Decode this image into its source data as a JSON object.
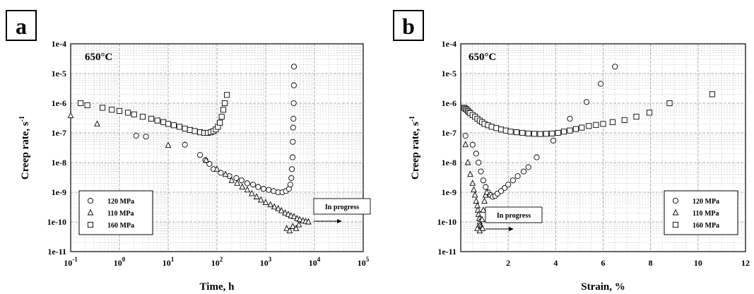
{
  "panels": [
    {
      "label": "a"
    },
    {
      "label": "b"
    }
  ],
  "chart_data": [
    {
      "type": "scatter",
      "panel": "a",
      "annotation_temp": "650°C",
      "annotation_progress": "In progress",
      "xlabel": "Time, h",
      "ylabel": "Creep rate, s",
      "ylabel_sup": "-1",
      "xscale": "log",
      "yscale": "log",
      "xlim": [
        0.1,
        100000
      ],
      "ylim": [
        1e-11,
        0.0001
      ],
      "x_ticks": [
        {
          "base": "10",
          "exp": "-1",
          "value": 0.1
        },
        {
          "base": "10",
          "exp": "0",
          "value": 1
        },
        {
          "base": "10",
          "exp": "1",
          "value": 10
        },
        {
          "base": "10",
          "exp": "2",
          "value": 100
        },
        {
          "base": "10",
          "exp": "3",
          "value": 1000
        },
        {
          "base": "10",
          "exp": "4",
          "value": 10000
        },
        {
          "base": "10",
          "exp": "5",
          "value": 100000
        }
      ],
      "y_ticks": [
        "1e-11",
        "1e-10",
        "1e-9",
        "1e-8",
        "1e-7",
        "1e-6",
        "1e-5",
        "1e-4"
      ],
      "grid": true,
      "legend_position": "bottom-left",
      "series": [
        {
          "name": "120 MPa",
          "marker": "circle",
          "points": [
            [
              2.2,
              8e-08
            ],
            [
              3.5,
              7.5e-08
            ],
            [
              22,
              4e-08
            ],
            [
              45,
              1.8e-08
            ],
            [
              58,
              1.2e-08
            ],
            [
              70,
              9e-09
            ],
            [
              85,
              6e-09
            ],
            [
              120,
              4.5e-09
            ],
            [
              180,
              3.5e-09
            ],
            [
              250,
              3e-09
            ],
            [
              320,
              2.5e-09
            ],
            [
              420,
              2e-09
            ],
            [
              550,
              1.8e-09
            ],
            [
              700,
              1.5e-09
            ],
            [
              900,
              1.3e-09
            ],
            [
              1150,
              1.2e-09
            ],
            [
              1450,
              1.1e-09
            ],
            [
              1800,
              1e-09
            ],
            [
              2200,
              1e-09
            ],
            [
              2600,
              1.1e-09
            ],
            [
              3000,
              1.3e-09
            ],
            [
              3200,
              1.8e-09
            ],
            [
              3350,
              3e-09
            ],
            [
              3450,
              6e-09
            ],
            [
              3550,
              1.5e-08
            ],
            [
              3600,
              5e-08
            ],
            [
              3650,
              1.5e-07
            ],
            [
              3700,
              3e-07
            ],
            [
              3750,
              1e-06
            ],
            [
              3780,
              4e-06
            ],
            [
              3800,
              1.7e-05
            ]
          ]
        },
        {
          "name": "110 MPa",
          "marker": "triangle",
          "points": [
            [
              0.1,
              3.8e-07
            ],
            [
              0.35,
              2e-07
            ],
            [
              10,
              3.8e-08
            ],
            [
              60,
              1.2e-08
            ],
            [
              100,
              6e-09
            ],
            [
              150,
              4e-09
            ],
            [
              200,
              2.5e-09
            ],
            [
              260,
              2e-09
            ],
            [
              330,
              1.5e-09
            ],
            [
              420,
              1.2e-09
            ],
            [
              520,
              9e-10
            ],
            [
              650,
              7e-10
            ],
            [
              800,
              5.5e-10
            ],
            [
              1000,
              4.5e-10
            ],
            [
              1250,
              3.8e-10
            ],
            [
              1500,
              3.2e-10
            ],
            [
              1800,
              2.8e-10
            ],
            [
              2100,
              2.4e-10
            ],
            [
              2500,
              2e-10
            ],
            [
              2900,
              1.8e-10
            ],
            [
              3300,
              1.6e-10
            ],
            [
              3800,
              1.5e-10
            ],
            [
              4400,
              1.3e-10
            ],
            [
              5000,
              1.2e-10
            ],
            [
              5800,
              1.1e-10
            ],
            [
              6600,
              1.05e-10
            ],
            [
              7500,
              1e-10
            ],
            [
              2700,
              6e-11
            ],
            [
              3100,
              5e-11
            ],
            [
              3600,
              7e-11
            ],
            [
              4200,
              6e-11
            ],
            [
              4800,
              8e-11
            ]
          ]
        },
        {
          "name": "160 MPa",
          "marker": "square",
          "points": [
            [
              0.16,
              1e-06
            ],
            [
              0.22,
              8.5e-07
            ],
            [
              0.45,
              7e-07
            ],
            [
              0.7,
              6e-07
            ],
            [
              1,
              5.5e-07
            ],
            [
              1.5,
              4.8e-07
            ],
            [
              2,
              4.2e-07
            ],
            [
              3,
              3.5e-07
            ],
            [
              4.5,
              3e-07
            ],
            [
              6,
              2.6e-07
            ],
            [
              8,
              2.3e-07
            ],
            [
              10,
              2e-07
            ],
            [
              13,
              1.8e-07
            ],
            [
              17,
              1.6e-07
            ],
            [
              22,
              1.4e-07
            ],
            [
              28,
              1.25e-07
            ],
            [
              35,
              1.15e-07
            ],
            [
              45,
              1.05e-07
            ],
            [
              55,
              1e-07
            ],
            [
              65,
              1e-07
            ],
            [
              75,
              1.05e-07
            ],
            [
              85,
              1.15e-07
            ],
            [
              95,
              1.3e-07
            ],
            [
              105,
              1.6e-07
            ],
            [
              115,
              2.2e-07
            ],
            [
              125,
              3.5e-07
            ],
            [
              135,
              6e-07
            ],
            [
              145,
              1e-06
            ],
            [
              160,
              1.9e-06
            ]
          ]
        }
      ]
    },
    {
      "type": "scatter",
      "panel": "b",
      "annotation_temp": "650°C",
      "annotation_progress": "In progress",
      "xlabel": "Strain, %",
      "ylabel": "Creep rate, s",
      "ylabel_sup": "-1",
      "xscale": "linear",
      "yscale": "log",
      "xlim": [
        0,
        12
      ],
      "ylim": [
        1e-11,
        0.0001
      ],
      "x_ticks": [
        "2",
        "4",
        "6",
        "8",
        "10",
        "12"
      ],
      "y_ticks": [
        "1e-11",
        "1e-10",
        "1e-9",
        "1e-8",
        "1e-7",
        "1e-6",
        "1e-5",
        "1e-4"
      ],
      "grid": true,
      "legend_position": "bottom-right",
      "series": [
        {
          "name": "120 MPa",
          "marker": "circle",
          "points": [
            [
              0.2,
              8e-08
            ],
            [
              0.5,
              4e-08
            ],
            [
              0.65,
              2e-08
            ],
            [
              0.75,
              1e-08
            ],
            [
              0.85,
              5e-09
            ],
            [
              0.95,
              2.5e-09
            ],
            [
              1.05,
              1.5e-09
            ],
            [
              1.15,
              1e-09
            ],
            [
              1.25,
              8e-10
            ],
            [
              1.35,
              7e-10
            ],
            [
              1.45,
              7.5e-10
            ],
            [
              1.55,
              9e-10
            ],
            [
              1.7,
              1.1e-09
            ],
            [
              1.85,
              1.4e-09
            ],
            [
              2,
              1.8e-09
            ],
            [
              2.2,
              2.5e-09
            ],
            [
              2.4,
              3.5e-09
            ],
            [
              2.65,
              5e-09
            ],
            [
              2.85,
              7e-09
            ],
            [
              3.2,
              1.5e-08
            ],
            [
              3.9,
              5.5e-08
            ],
            [
              4.6,
              3e-07
            ],
            [
              5.3,
              1.1e-06
            ],
            [
              5.9,
              4.5e-06
            ],
            [
              6.5,
              1.7e-05
            ]
          ]
        },
        {
          "name": "110 MPa",
          "marker": "triangle",
          "points": [
            [
              0.2,
              4e-08
            ],
            [
              0.3,
              1e-08
            ],
            [
              0.4,
              4e-09
            ],
            [
              0.5,
              2e-09
            ],
            [
              0.55,
              1.2e-09
            ],
            [
              0.6,
              8e-10
            ],
            [
              0.65,
              5e-10
            ],
            [
              0.7,
              3.5e-10
            ],
            [
              0.72,
              2.5e-10
            ],
            [
              0.75,
              1.8e-10
            ],
            [
              0.78,
              1.3e-10
            ],
            [
              0.8,
              1e-10
            ],
            [
              0.82,
              8e-11
            ],
            [
              0.85,
              7e-11
            ],
            [
              0.88,
              6e-11
            ],
            [
              0.9,
              1.2e-10
            ],
            [
              0.95,
              2.5e-10
            ],
            [
              1,
              5e-10
            ],
            [
              1.05,
              8e-10
            ],
            [
              1.1,
              1e-09
            ],
            [
              0.7,
              6e-11
            ],
            [
              0.8,
              5e-11
            ],
            [
              0.92,
              6e-11
            ]
          ]
        },
        {
          "name": "160 MPa",
          "marker": "square",
          "points": [
            [
              0.15,
              7e-07
            ],
            [
              0.2,
              6.5e-07
            ],
            [
              0.25,
              6e-07
            ],
            [
              0.3,
              5.5e-07
            ],
            [
              0.35,
              5e-07
            ],
            [
              0.4,
              4.6e-07
            ],
            [
              0.5,
              4e-07
            ],
            [
              0.6,
              3.5e-07
            ],
            [
              0.7,
              3e-07
            ],
            [
              0.8,
              2.6e-07
            ],
            [
              0.9,
              2.3e-07
            ],
            [
              1,
              2e-07
            ],
            [
              1.15,
              1.8e-07
            ],
            [
              1.3,
              1.6e-07
            ],
            [
              1.5,
              1.45e-07
            ],
            [
              1.7,
              1.3e-07
            ],
            [
              1.9,
              1.2e-07
            ],
            [
              2.1,
              1.1e-07
            ],
            [
              2.35,
              1.05e-07
            ],
            [
              2.6,
              1e-07
            ],
            [
              2.85,
              9.5e-08
            ],
            [
              3.1,
              9.3e-08
            ],
            [
              3.35,
              9.2e-08
            ],
            [
              3.6,
              9.3e-08
            ],
            [
              3.85,
              9.5e-08
            ],
            [
              4.1,
              1e-07
            ],
            [
              4.35,
              1.1e-07
            ],
            [
              4.6,
              1.2e-07
            ],
            [
              4.85,
              1.35e-07
            ],
            [
              5.1,
              1.5e-07
            ],
            [
              5.4,
              1.7e-07
            ],
            [
              5.7,
              1.85e-07
            ],
            [
              6,
              2e-07
            ],
            [
              6.4,
              2.3e-07
            ],
            [
              6.9,
              2.7e-07
            ],
            [
              7.4,
              3.5e-07
            ],
            [
              7.95,
              4.8e-07
            ],
            [
              8.8,
              1e-06
            ],
            [
              10.6,
              2e-06
            ]
          ]
        }
      ]
    }
  ]
}
